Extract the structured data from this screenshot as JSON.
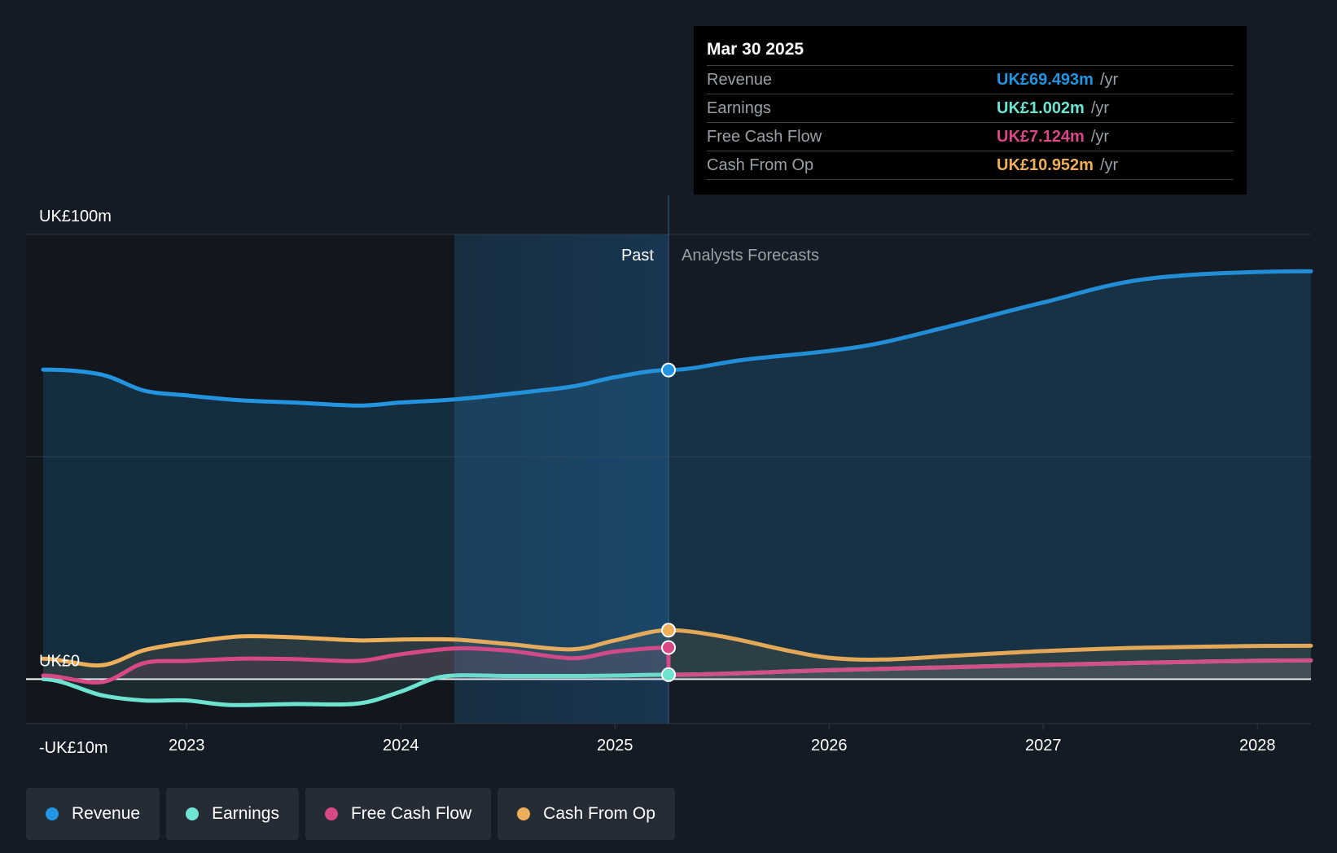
{
  "chart_data": {
    "type": "line",
    "x_ticks": [
      "2023",
      "2024",
      "2025",
      "2026",
      "2027",
      "2028"
    ],
    "y_ticks": [
      {
        "label": "UK£100m",
        "value": 100
      },
      {
        "label": "UK£0",
        "value": 0
      },
      {
        "label": "-UK£10m",
        "value": -10
      }
    ],
    "ylim": [
      -10,
      100
    ],
    "xlim": [
      2022.25,
      2028.25
    ],
    "past_label": "Past",
    "forecast_label": "Analysts Forecasts",
    "divider_x": 2025.25,
    "highlight_start_x": 2024.25,
    "series": [
      {
        "name": "Revenue",
        "color": "#2394df",
        "points": [
          [
            2022.33,
            69.6
          ],
          [
            2022.6,
            68.5
          ],
          [
            2022.8,
            64.9
          ],
          [
            2023.0,
            63.8
          ],
          [
            2023.25,
            62.7
          ],
          [
            2023.5,
            62.2
          ],
          [
            2023.8,
            61.5
          ],
          [
            2024.0,
            62.2
          ],
          [
            2024.25,
            62.9
          ],
          [
            2024.5,
            64.1
          ],
          [
            2024.8,
            65.8
          ],
          [
            2025.0,
            67.9
          ],
          [
            2025.25,
            69.5
          ],
          [
            2025.6,
            71.8
          ],
          [
            2026.0,
            73.8
          ],
          [
            2026.25,
            75.7
          ],
          [
            2026.6,
            79.8
          ],
          [
            2027.0,
            84.7
          ],
          [
            2027.5,
            90.1
          ],
          [
            2028.25,
            91.7
          ]
        ]
      },
      {
        "name": "Earnings",
        "color": "#6ee3d0",
        "points": [
          [
            2022.33,
            0.0
          ],
          [
            2022.6,
            -3.6
          ],
          [
            2022.8,
            -4.8
          ],
          [
            2023.0,
            -4.8
          ],
          [
            2023.2,
            -5.8
          ],
          [
            2023.5,
            -5.6
          ],
          [
            2023.8,
            -5.5
          ],
          [
            2024.0,
            -2.8
          ],
          [
            2024.2,
            0.6
          ],
          [
            2024.5,
            0.7
          ],
          [
            2024.8,
            0.7
          ],
          [
            2025.0,
            0.8
          ],
          [
            2025.25,
            1.0
          ],
          [
            2026.0,
            2.0
          ],
          [
            2027.0,
            3.2
          ],
          [
            2028.25,
            4.2
          ]
        ]
      },
      {
        "name": "Free Cash Flow",
        "color": "#d94886",
        "points": [
          [
            2022.33,
            0.8
          ],
          [
            2022.6,
            -0.7
          ],
          [
            2022.8,
            3.6
          ],
          [
            2023.0,
            4.1
          ],
          [
            2023.25,
            4.6
          ],
          [
            2023.5,
            4.5
          ],
          [
            2023.8,
            4.1
          ],
          [
            2024.0,
            5.6
          ],
          [
            2024.25,
            6.9
          ],
          [
            2024.5,
            6.4
          ],
          [
            2024.8,
            4.7
          ],
          [
            2025.0,
            6.2
          ],
          [
            2025.25,
            7.1
          ],
          [
            2025.25,
            1.0
          ],
          [
            2026.0,
            2.0
          ],
          [
            2027.0,
            3.2
          ],
          [
            2028.25,
            4.2
          ]
        ]
      },
      {
        "name": "Cash From Op",
        "color": "#edaf5a",
        "points": [
          [
            2022.33,
            4.6
          ],
          [
            2022.6,
            3.1
          ],
          [
            2022.8,
            6.5
          ],
          [
            2023.0,
            8.2
          ],
          [
            2023.25,
            9.6
          ],
          [
            2023.5,
            9.4
          ],
          [
            2023.8,
            8.7
          ],
          [
            2024.0,
            8.9
          ],
          [
            2024.25,
            8.9
          ],
          [
            2024.5,
            7.9
          ],
          [
            2024.8,
            6.7
          ],
          [
            2025.0,
            8.7
          ],
          [
            2025.25,
            11.0
          ],
          [
            2025.5,
            9.6
          ],
          [
            2025.8,
            6.5
          ],
          [
            2026.0,
            4.8
          ],
          [
            2026.25,
            4.4
          ],
          [
            2026.6,
            5.3
          ],
          [
            2027.0,
            6.3
          ],
          [
            2027.5,
            7.1
          ],
          [
            2028.25,
            7.5
          ]
        ]
      }
    ]
  },
  "tooltip": {
    "date": "Mar 30 2025",
    "rows": [
      {
        "label": "Revenue",
        "value": "UK£69.493m",
        "unit": "/yr",
        "color": "#2394df"
      },
      {
        "label": "Earnings",
        "value": "UK£1.002m",
        "unit": "/yr",
        "color": "#6ee3d0"
      },
      {
        "label": "Free Cash Flow",
        "value": "UK£7.124m",
        "unit": "/yr",
        "color": "#d94886"
      },
      {
        "label": "Cash From Op",
        "value": "UK£10.952m",
        "unit": "/yr",
        "color": "#edaf5a"
      }
    ]
  },
  "legend": [
    {
      "label": "Revenue",
      "color": "#2394df"
    },
    {
      "label": "Earnings",
      "color": "#6ee3d0"
    },
    {
      "label": "Free Cash Flow",
      "color": "#d94886"
    },
    {
      "label": "Cash From Op",
      "color": "#edaf5a"
    }
  ],
  "colors": {
    "background": "#151b24",
    "past_shade": "#12161d",
    "highlight": "#15304a",
    "grid": "#2e3743"
  }
}
